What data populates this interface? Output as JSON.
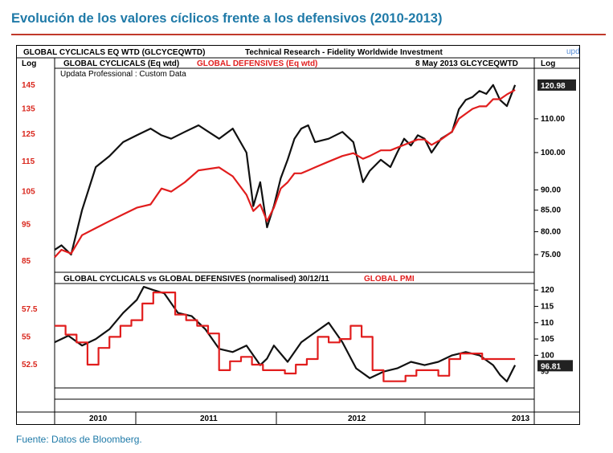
{
  "page": {
    "title": "Evolución de los valores cíclicos frente a los defensivos (2010-2013)",
    "source": "Fuente: Datos de Bloomberg."
  },
  "chart_header": {
    "instrument": "GLOBAL  CYCLICALS EQ WTD (GLCYCEQWTD)",
    "provider": "Technical Research - Fidelity Worldwide Investment",
    "logo": "updata",
    "log_left": "Log",
    "log_right": "Log",
    "date_code": "8 May 2013  GLCYCEQWTD",
    "subtitle": "Updata Professional : Custom Data"
  },
  "chart_data": [
    {
      "type": "line",
      "panel": "top",
      "series": [
        {
          "name": "GLOBAL CYCLICALS (Eq wtd)",
          "color": "#111111",
          "axis": "right",
          "x": [
            2010.0,
            2010.05,
            2010.12,
            2010.2,
            2010.3,
            2010.4,
            2010.5,
            2010.6,
            2010.7,
            2010.78,
            2010.85,
            2010.95,
            2011.05,
            2011.2,
            2011.3,
            2011.4,
            2011.45,
            2011.5,
            2011.55,
            2011.6,
            2011.65,
            2011.7,
            2011.75,
            2011.8,
            2011.85,
            2011.9,
            2012.0,
            2012.1,
            2012.18,
            2012.25,
            2012.3,
            2012.38,
            2012.45,
            2012.5,
            2012.55,
            2012.6,
            2012.65,
            2012.7,
            2012.75,
            2012.82,
            2012.9,
            2012.95,
            2013.0,
            2013.05,
            2013.1,
            2013.15,
            2013.2,
            2013.25,
            2013.3,
            2013.36
          ],
          "y": [
            76,
            77,
            75,
            85,
            96,
            99,
            103,
            105,
            107,
            105,
            104,
            106,
            108,
            104,
            107,
            100,
            86,
            92,
            81,
            86,
            93,
            98,
            104,
            107,
            108,
            103,
            104,
            106,
            103,
            92,
            95,
            98,
            96,
            100,
            104,
            102,
            105,
            104,
            100,
            104,
            106,
            113,
            116,
            117,
            119,
            118,
            121,
            116,
            114,
            121
          ]
        },
        {
          "name": "GLOBAL DEFENSIVES (Eq wtd)",
          "color": "#e11d1d",
          "axis": "left",
          "x": [
            2010.0,
            2010.05,
            2010.12,
            2010.2,
            2010.3,
            2010.4,
            2010.5,
            2010.6,
            2010.7,
            2010.78,
            2010.85,
            2010.95,
            2011.05,
            2011.2,
            2011.3,
            2011.4,
            2011.45,
            2011.5,
            2011.55,
            2011.6,
            2011.65,
            2011.7,
            2011.75,
            2011.8,
            2011.85,
            2011.9,
            2012.0,
            2012.1,
            2012.18,
            2012.25,
            2012.3,
            2012.38,
            2012.45,
            2012.5,
            2012.55,
            2012.6,
            2012.65,
            2012.7,
            2012.75,
            2012.82,
            2012.9,
            2012.95,
            2013.0,
            2013.05,
            2013.1,
            2013.15,
            2013.2,
            2013.25,
            2013.3,
            2013.36
          ],
          "y": [
            86,
            88,
            87,
            92,
            94,
            96,
            98,
            100,
            101,
            106,
            105,
            108,
            112,
            113,
            110,
            104,
            99,
            101,
            96,
            100,
            106,
            108,
            111,
            111,
            112,
            113,
            115,
            117,
            118,
            116,
            117,
            119,
            119,
            120,
            121,
            122,
            123,
            123,
            121,
            123,
            126,
            131,
            133,
            135,
            136,
            136,
            139,
            139,
            141,
            143
          ]
        }
      ],
      "left_axis": {
        "label": "Log",
        "ticks": [
          85,
          95,
          105,
          115,
          125,
          135,
          145
        ],
        "color": "#d9261c"
      },
      "right_axis": {
        "label": "Log",
        "ticks": [
          75.0,
          80.0,
          85.0,
          90.0,
          100.0,
          110.0
        ],
        "current": "120.98"
      }
    },
    {
      "type": "line",
      "panel": "bottom",
      "title": "GLOBAL  CYCLICALS vs GLOBAL DEFENSIVES (normalised) 30/12/11",
      "series": [
        {
          "name": "",
          "color": "#111111",
          "axis": "right",
          "x": [
            2010.0,
            2010.1,
            2010.2,
            2010.3,
            2010.4,
            2010.5,
            2010.6,
            2010.65,
            2010.72,
            2010.8,
            2010.9,
            2011.0,
            2011.1,
            2011.2,
            2011.3,
            2011.4,
            2011.5,
            2011.55,
            2011.6,
            2011.7,
            2011.8,
            2011.9,
            2012.0,
            2012.1,
            2012.2,
            2012.3,
            2012.4,
            2012.5,
            2012.6,
            2012.7,
            2012.8,
            2012.9,
            2013.0,
            2013.1,
            2013.2,
            2013.25,
            2013.3,
            2013.36
          ],
          "y": [
            104,
            106,
            103,
            105,
            108,
            113,
            117,
            121,
            120,
            119,
            113,
            112,
            108,
            102,
            101,
            103,
            97,
            99,
            103,
            98,
            104,
            107,
            110,
            104,
            96,
            93,
            95,
            96,
            98,
            97,
            98,
            100,
            101,
            100,
            97,
            94,
            92,
            97
          ]
        },
        {
          "name": "GLOBAL PMI",
          "color": "#e11d1d",
          "axis": "left",
          "x": [
            2010.0,
            2010.08,
            2010.16,
            2010.24,
            2010.32,
            2010.4,
            2010.48,
            2010.56,
            2010.64,
            2010.72,
            2010.8,
            2010.88,
            2010.96,
            2011.04,
            2011.12,
            2011.2,
            2011.28,
            2011.36,
            2011.44,
            2011.52,
            2011.6,
            2011.68,
            2011.76,
            2011.84,
            2011.92,
            2012.0,
            2012.08,
            2012.16,
            2012.24,
            2012.32,
            2012.4,
            2012.48,
            2012.56,
            2012.64,
            2012.72,
            2012.8,
            2012.88,
            2012.96,
            2013.04,
            2013.12,
            2013.2,
            2013.28,
            2013.36
          ],
          "y": [
            56,
            55.2,
            54.5,
            52.5,
            54,
            55,
            56,
            56.5,
            58,
            59,
            59,
            57,
            56.5,
            56,
            55.3,
            52,
            52.8,
            53.2,
            52.5,
            52,
            52,
            51.7,
            52.5,
            53,
            55,
            54.5,
            54.8,
            56,
            55,
            52,
            51,
            51,
            51.5,
            52,
            52,
            51.5,
            53,
            53.5,
            53.5,
            53,
            53,
            53,
            53
          ]
        }
      ],
      "left_axis": {
        "ticks": [
          52.5,
          55,
          57.5
        ],
        "color": "#d9261c"
      },
      "right_axis": {
        "ticks": [
          100,
          105,
          110,
          115,
          120
        ],
        "extra_tick": "95",
        "current": "96.81"
      },
      "x_axis": {
        "ticks": [
          "2010",
          "2011",
          "2012",
          "2013"
        ]
      }
    }
  ]
}
